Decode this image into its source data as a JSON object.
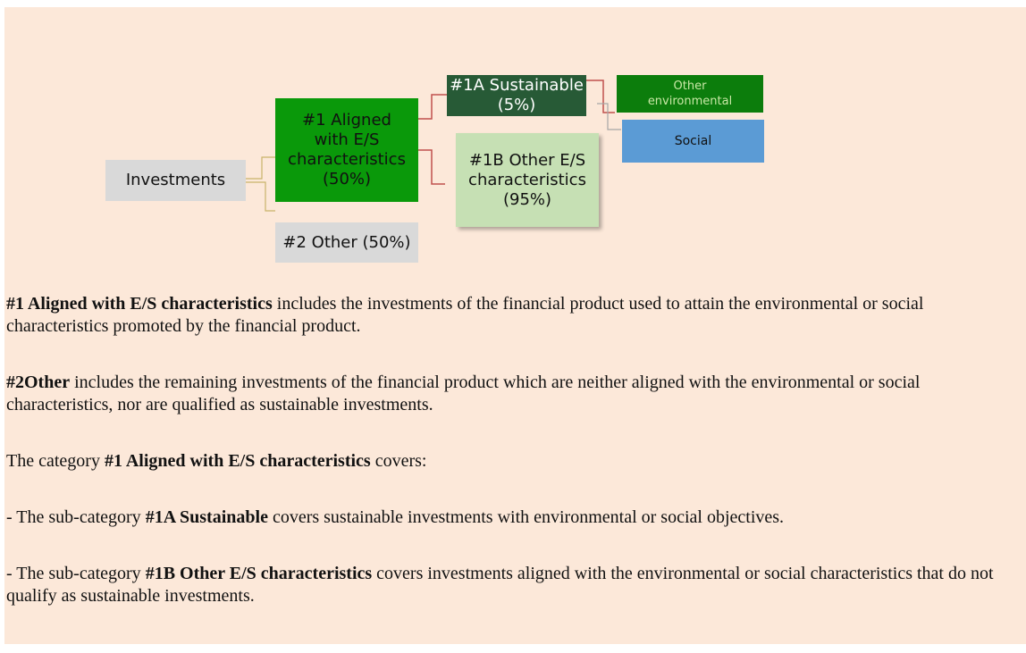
{
  "nodes": [
    {
      "id": "investments",
      "lines": [
        "Investments"
      ]
    },
    {
      "id": "aligned",
      "lines": [
        "#1 Aligned",
        "with E/S",
        "characteristics",
        "(50%)"
      ]
    },
    {
      "id": "other",
      "lines": [
        "#2 Other (50%)"
      ]
    },
    {
      "id": "sustainable",
      "lines": [
        "#1A Sustainable",
        "(5%)"
      ]
    },
    {
      "id": "other-es",
      "lines": [
        "#1B Other E/S",
        "characteristics",
        "(95%)"
      ]
    },
    {
      "id": "other-env",
      "lines": [
        "Other",
        "environmental"
      ]
    },
    {
      "id": "social",
      "lines": [
        "Social"
      ]
    }
  ],
  "paragraphs": [
    [
      {
        "text": "#1 Aligned with E/S characteristics",
        "bold": true
      },
      {
        "text": " includes the investments of the financial product used to attain the environmental or social characteristics promoted by the financial product.",
        "bold": false
      }
    ],
    [
      {
        "text": "#2Other",
        "bold": true
      },
      {
        "text": " includes the remaining investments of the financial product which are neither aligned with the environmental or social characteristics, nor are qualified as sustainable investments.",
        "bold": false
      }
    ],
    [
      {
        "text": "The category ",
        "bold": false
      },
      {
        "text": "#1 Aligned with E/S characteristics",
        "bold": true
      },
      {
        "text": " covers:",
        "bold": false
      }
    ],
    [
      {
        "text": "- The sub-category ",
        "bold": false
      },
      {
        "text": "#1A Sustainable",
        "bold": true
      },
      {
        "text": " covers sustainable investments with environmental or social objectives.",
        "bold": false
      }
    ],
    [
      {
        "text": "- The sub-category ",
        "bold": false
      },
      {
        "text": "#1B Other E/S characteristics",
        "bold": true
      },
      {
        "text": " covers investments aligned with the environmental or social characteristics that do not qualify as sustainable investments.",
        "bold": false
      }
    ]
  ]
}
